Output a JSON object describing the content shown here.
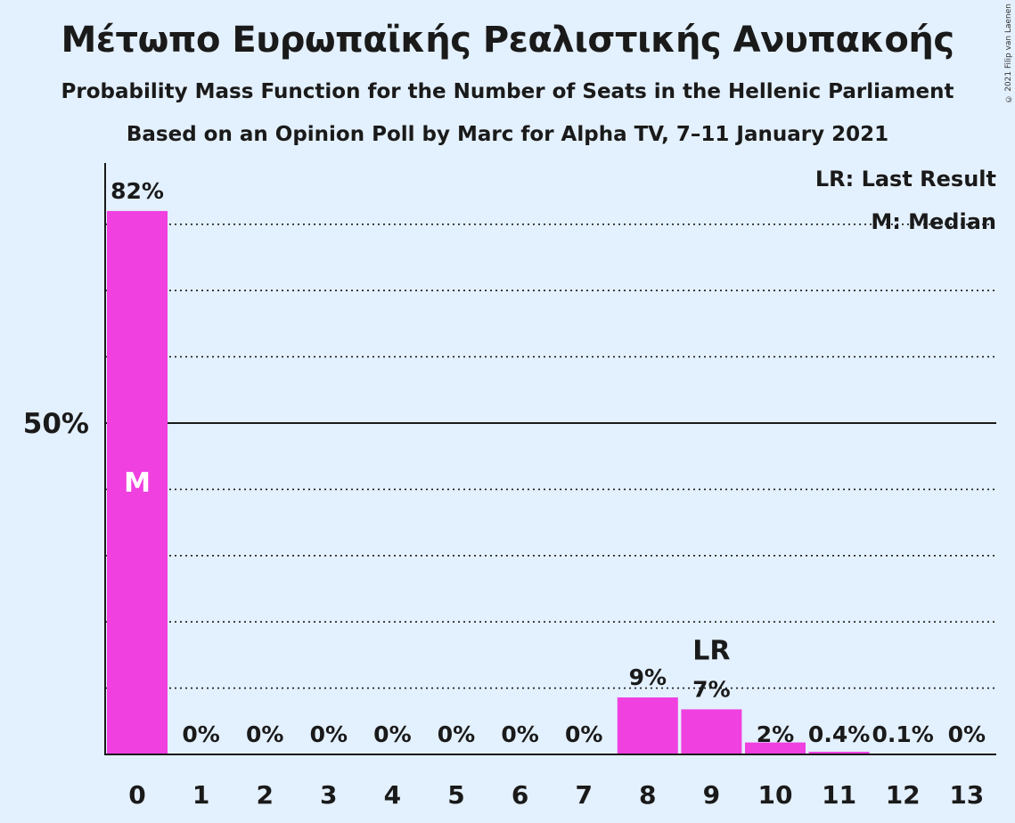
{
  "title": "Μέτωπο Ευρωπαϊκής Ρεαλιστικής Ανυπακοής",
  "subtitle": "Probability Mass Function for the Number of Seats in the Hellenic Parliament",
  "subtitle2": "Based on an Opinion Poll by Marc for Alpha TV, 7–11 January 2021",
  "copyright": "© 2021 Filip van Laenen",
  "colors": {
    "bar": "#f040e0",
    "background": "#e3f0fd",
    "text": "#1a1a1a"
  },
  "chart_data": {
    "type": "bar",
    "categories": [
      "0",
      "1",
      "2",
      "3",
      "4",
      "5",
      "6",
      "7",
      "8",
      "9",
      "10",
      "11",
      "12",
      "13"
    ],
    "values": [
      82,
      0,
      0,
      0,
      0,
      0,
      0,
      0,
      8.6,
      6.8,
      1.8,
      0.4,
      0.1,
      0
    ],
    "labels": [
      "82%",
      "0%",
      "0%",
      "0%",
      "0%",
      "0%",
      "0%",
      "0%",
      "9%",
      "7%",
      "2%",
      "0.4%",
      "0.1%",
      "0%"
    ],
    "ylim": [
      0,
      85
    ],
    "ytick_label": "50%",
    "ytick_value": 50,
    "gridlines": [
      10,
      20,
      30,
      40,
      50,
      60,
      70,
      80
    ],
    "median_index": 0,
    "median_label": "M",
    "last_result_index": 9,
    "last_result_label": "LR",
    "legend": [
      "LR: Last Result",
      "M: Median"
    ],
    "legend_position": "top-right"
  }
}
